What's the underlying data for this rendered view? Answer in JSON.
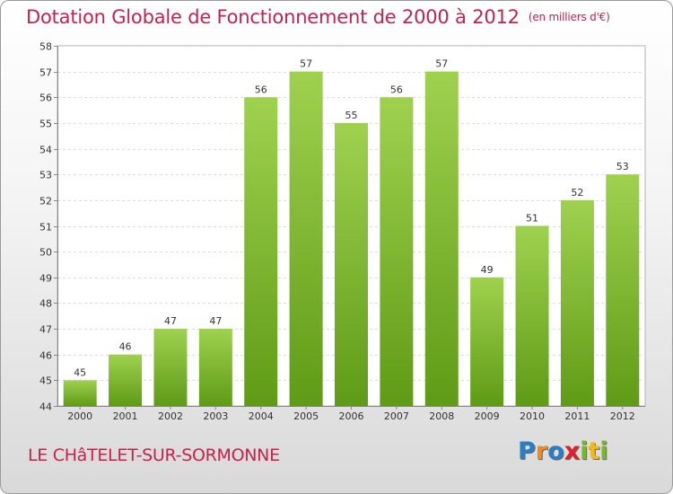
{
  "chart_data": {
    "type": "bar",
    "title": "Dotation Globale de Fonctionnement de 2000 à 2012",
    "unit": "(en milliers d'€)",
    "categories": [
      "2000",
      "2001",
      "2002",
      "2003",
      "2004",
      "2005",
      "2006",
      "2007",
      "2008",
      "2009",
      "2010",
      "2011",
      "2012"
    ],
    "values": [
      45,
      46,
      47,
      47,
      56,
      57,
      55,
      56,
      57,
      49,
      51,
      52,
      53
    ],
    "ylim": [
      44,
      58
    ],
    "yticks": [
      44,
      45,
      46,
      47,
      48,
      49,
      50,
      51,
      52,
      53,
      54,
      55,
      56,
      57,
      58
    ],
    "grid": true,
    "bar_color": "#7fc032"
  },
  "footer": {
    "commune": "LE CHâTELET-SUR-SORMONNE",
    "logo_letters": [
      {
        "char": "P",
        "color": "#2a7fc4"
      },
      {
        "char": "r",
        "color": "#f08a1c"
      },
      {
        "char": "o",
        "color": "#2a7fc4"
      },
      {
        "char": "x",
        "color": "#e0202c"
      },
      {
        "char": "i",
        "color": "#79b72d"
      },
      {
        "char": "t",
        "color": "#f0b81c"
      },
      {
        "char": "i",
        "color": "#79b72d"
      }
    ]
  }
}
